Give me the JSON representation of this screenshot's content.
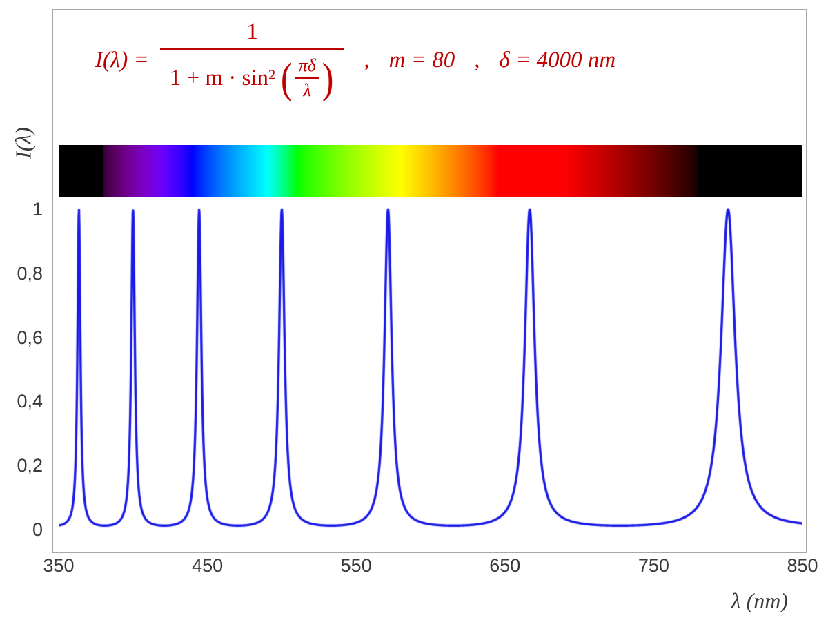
{
  "formula": {
    "lhs": "I(λ) =",
    "numerator": "1",
    "den_prefix": "1 + m · sin²",
    "open_paren": "(",
    "inner_num": "πδ",
    "inner_den": "λ",
    "close_paren": ")",
    "comma1": ",",
    "param_m": "m = 80",
    "comma2": ",",
    "param_delta": "δ = 4000 nm",
    "color": "#c00000"
  },
  "chart_data": {
    "type": "line",
    "title": "",
    "formula_text": "I(λ) = 1 / (1 + m·sin²(πδ/λ))",
    "params": {
      "m": 80,
      "delta_nm": 4000
    },
    "x": {
      "label": "λ  (nm)",
      "min": 350,
      "max": 850,
      "ticks": [
        {
          "value": 350,
          "label": "350"
        },
        {
          "value": 450,
          "label": "450"
        },
        {
          "value": 550,
          "label": "550"
        },
        {
          "value": 650,
          "label": "650"
        },
        {
          "value": 750,
          "label": "750"
        },
        {
          "value": 850,
          "label": "850"
        }
      ]
    },
    "y": {
      "label": "I(λ)",
      "min": 0,
      "max": 1,
      "ticks": [
        {
          "value": 0,
          "label": "0"
        },
        {
          "value": 0.2,
          "label": "0,2"
        },
        {
          "value": 0.4,
          "label": "0,4"
        },
        {
          "value": 0.6,
          "label": "0,6"
        },
        {
          "value": 0.8,
          "label": "0,8"
        },
        {
          "value": 1,
          "label": "1"
        }
      ]
    },
    "peaks_nm": [
      363.6,
      400,
      444.4,
      500,
      571.4,
      666.7,
      800
    ],
    "peak_value": 1,
    "min_value": 0.0123,
    "curve_color": "#1a1ae8",
    "grid": false,
    "legend": false,
    "spectrum_bar": {
      "range_nm": [
        350,
        850
      ],
      "visible_min_nm": 380,
      "visible_max_nm": 780
    }
  }
}
